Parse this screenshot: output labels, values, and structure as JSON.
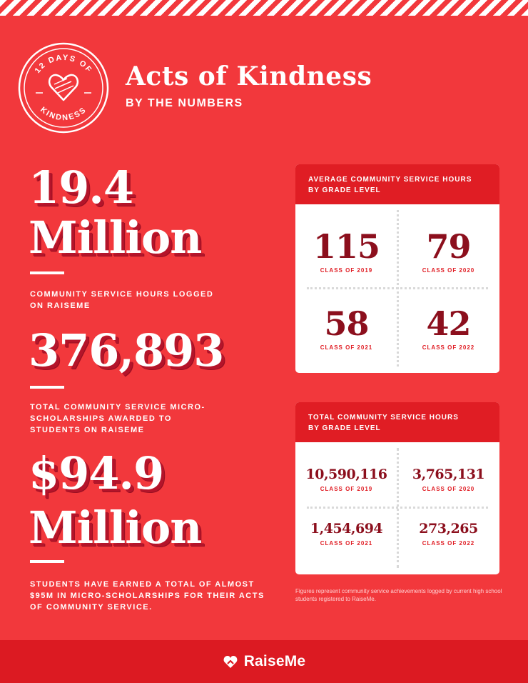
{
  "badge": {
    "line1": "12 DAYS OF",
    "line2": "KINDNESS"
  },
  "header": {
    "title": "Acts of Kindness",
    "subtitle": "BY THE NUMBERS"
  },
  "stats": [
    {
      "value_line1": "19.4",
      "value_line2": "Million",
      "caption": "COMMUNITY SERVICE HOURS LOGGED ON RAISEME"
    },
    {
      "value_line1": "376,893",
      "caption": "TOTAL COMMUNITY SERVICE MICRO-SCHOLARSHIPS AWARDED TO STUDENTS ON RAISEME"
    },
    {
      "value_line1": "$94.9",
      "value_line2": "Million",
      "caption": "STUDENTS HAVE EARNED A TOTAL OF ALMOST $95M IN MICRO-SCHOLARSHIPS FOR THEIR ACTS OF COMMUNITY SERVICE."
    }
  ],
  "avg_card": {
    "title_line1": "AVERAGE COMMUNITY SERVICE HOURS",
    "title_line2": "BY GRADE LEVEL",
    "cells": [
      {
        "value": "115",
        "label": "CLASS OF 2019"
      },
      {
        "value": "79",
        "label": "CLASS OF 2020"
      },
      {
        "value": "58",
        "label": "CLASS OF 2021"
      },
      {
        "value": "42",
        "label": "CLASS OF 2022"
      }
    ]
  },
  "total_card": {
    "title_line1": "TOTAL COMMUNITY SERVICE HOURS",
    "title_line2": "BY GRADE LEVEL",
    "cells": [
      {
        "value": "10,590,116",
        "label": "CLASS OF 2019"
      },
      {
        "value": "3,765,131",
        "label": "CLASS OF 2020"
      },
      {
        "value": "1,454,694",
        "label": "CLASS OF 2021"
      },
      {
        "value": "273,265",
        "label": "CLASS OF 2022"
      }
    ]
  },
  "footnote": "Figures represent community service achievements logged by current high school students registered to RaiseMe.",
  "footer": {
    "brand": "RaiseMe",
    "logo_icon": "raiseme-logo-icon"
  },
  "colors": {
    "background": "#f2383c",
    "card_header": "#e01d24",
    "number": "#8c0f1d",
    "shadow": "#b4142a"
  }
}
